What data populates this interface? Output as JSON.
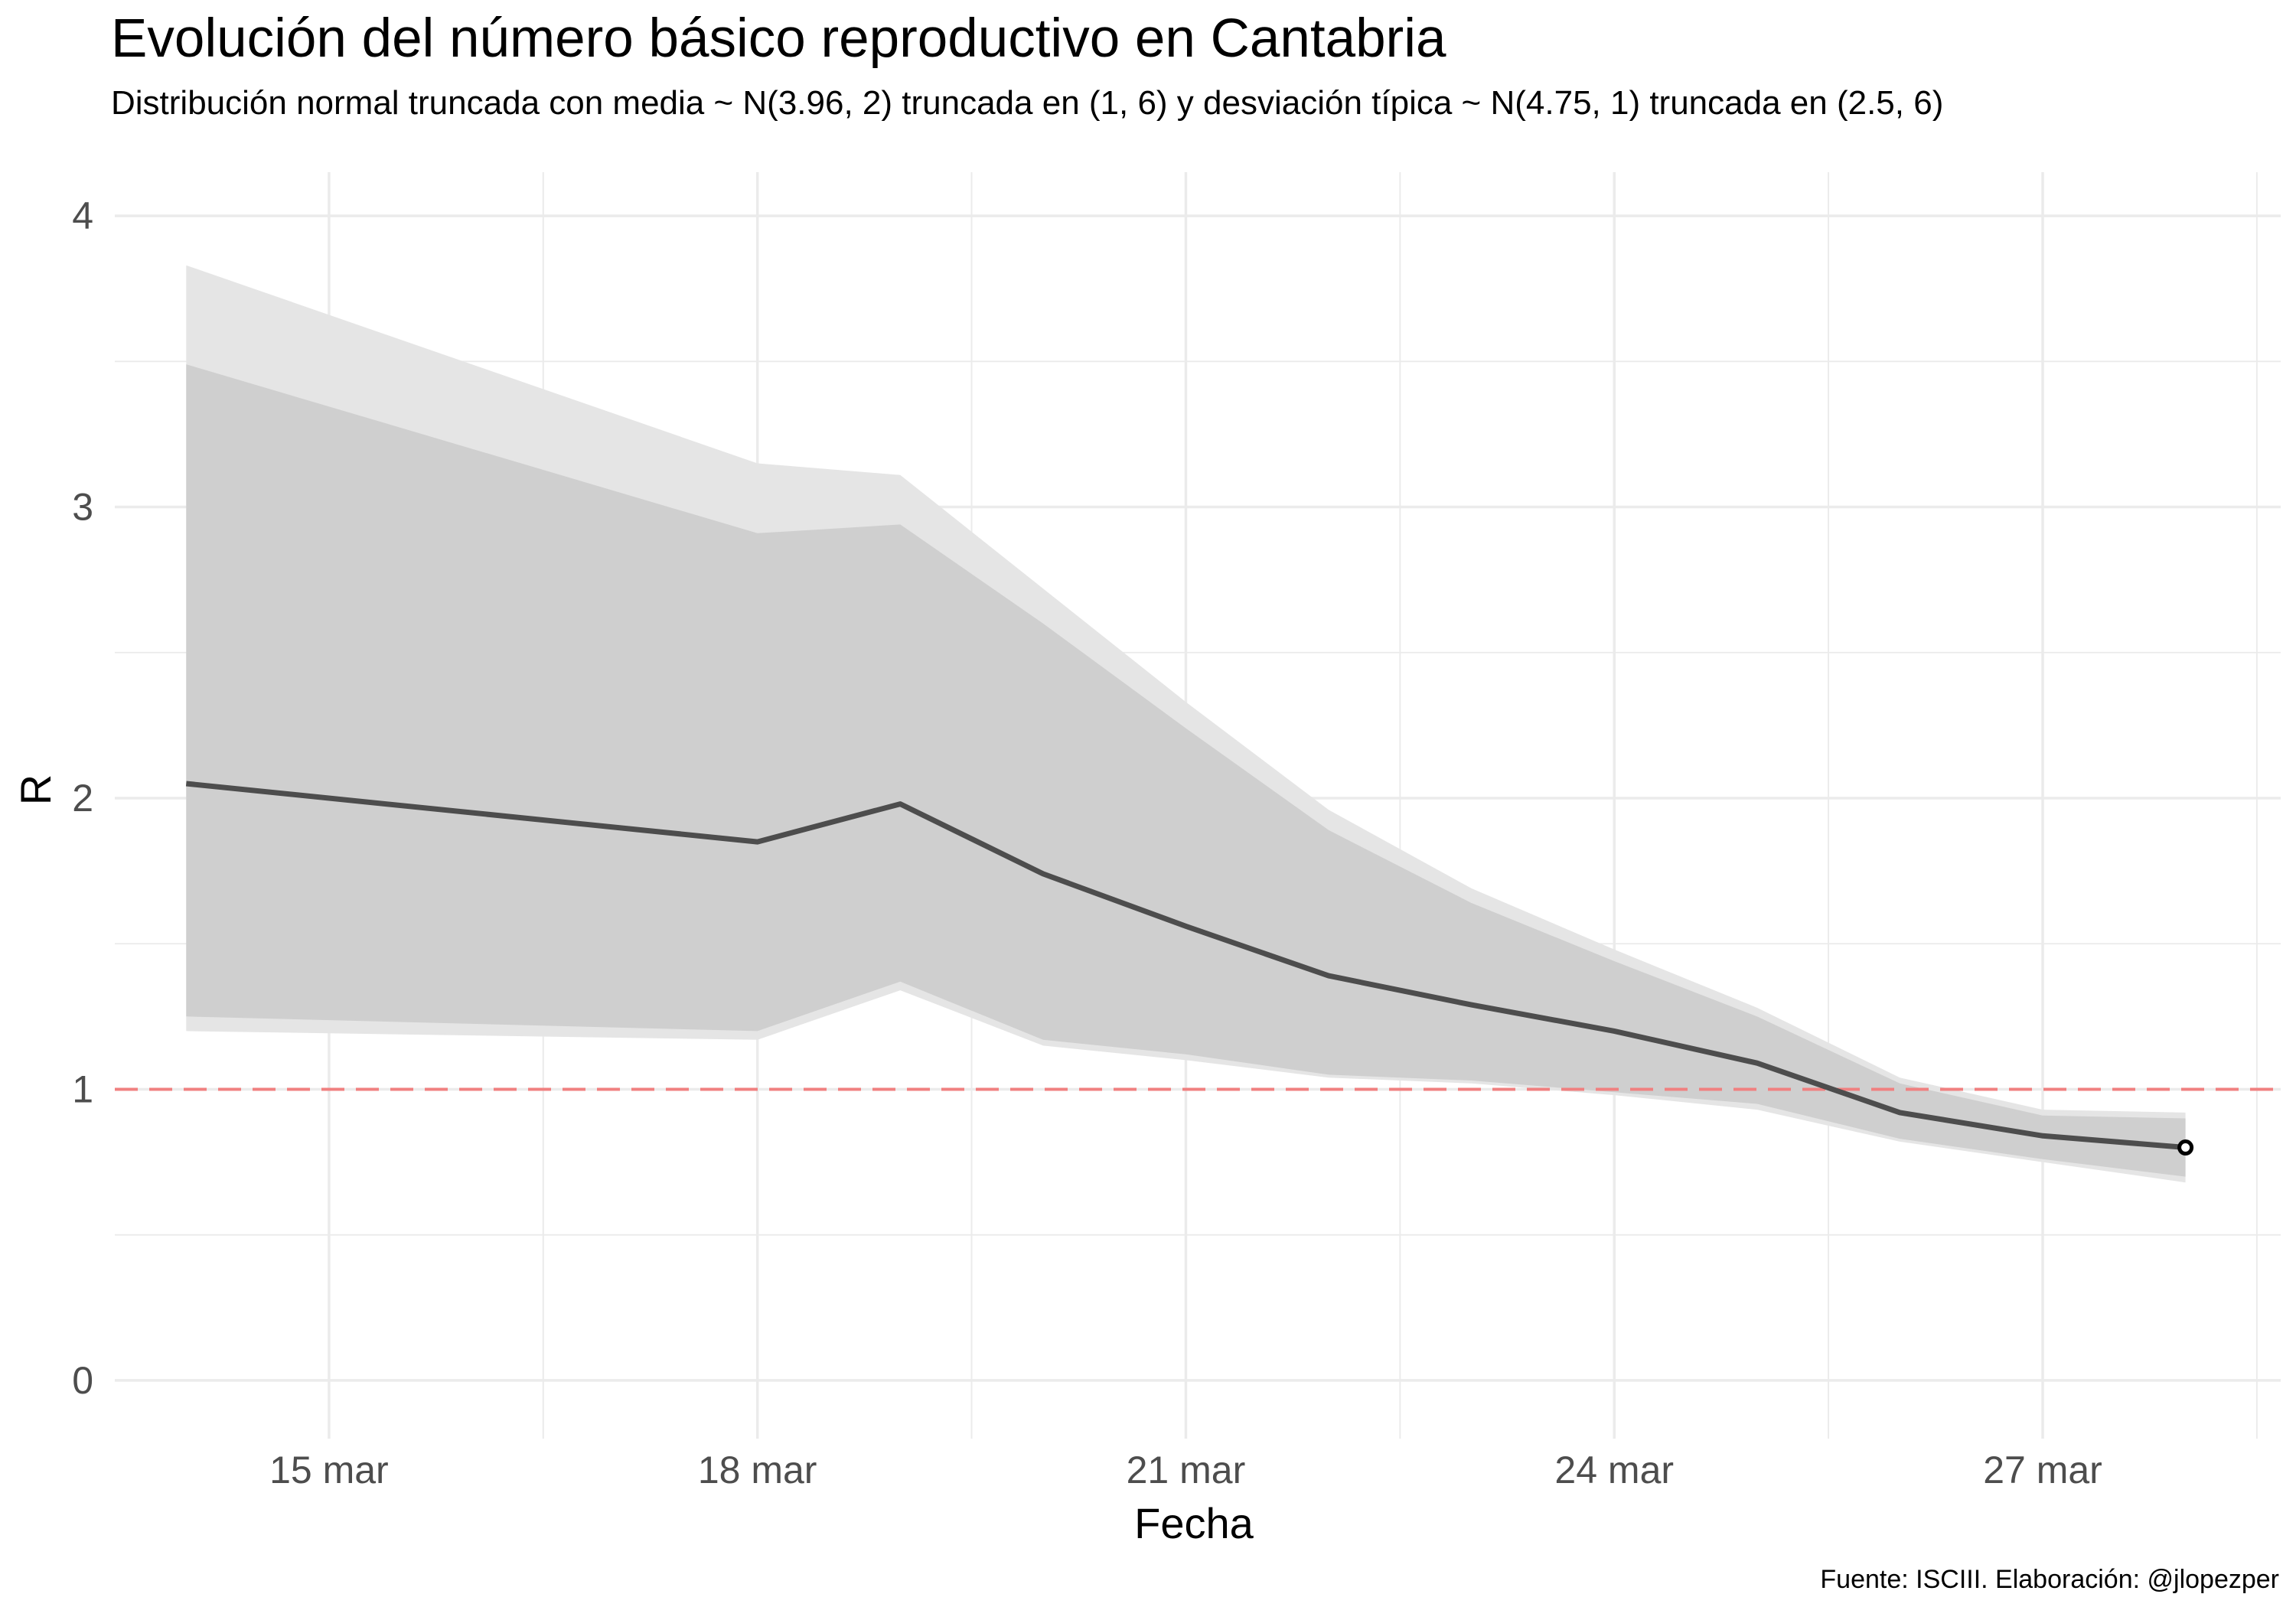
{
  "title": "Evolución del número básico reproductivo en Cantabria",
  "subtitle": "Distribución normal truncada con media ~ N(3.96, 2) truncada en (1, 6) y desviación típica ~ N(4.75, 1) truncada en (2.5, 6)",
  "caption": "Fuente: ISCIII. Elaboración: @jlopezper",
  "colors": {
    "line": "#4d4d4d",
    "outer_band": "#e5e5e5",
    "inner_band": "#cfcfcf",
    "reference": "#f08080",
    "grid": "#ebebeb"
  },
  "chart_data": {
    "type": "line",
    "xlabel": "Fecha",
    "ylabel": "R",
    "grid": true,
    "legend": "none",
    "x_ticks": [
      {
        "date": "2020-03-15",
        "label": "15 mar"
      },
      {
        "date": "2020-03-18",
        "label": "18 mar"
      },
      {
        "date": "2020-03-21",
        "label": "21 mar"
      },
      {
        "date": "2020-03-24",
        "label": "24 mar"
      },
      {
        "date": "2020-03-27",
        "label": "27 mar"
      }
    ],
    "y_ticks": [
      "0",
      "1",
      "2",
      "3",
      "4"
    ],
    "xlim": [
      "2020-03-13 12:00",
      "2020-03-28 16:00"
    ],
    "ylim": [
      -0.2,
      4.15
    ],
    "reference_line": {
      "y": 1,
      "style": "dashed"
    },
    "x": [
      "2020-03-14 00:00",
      "2020-03-18 00:00",
      "2020-03-19 00:00",
      "2020-03-20 00:00",
      "2020-03-21 00:00",
      "2020-03-22 00:00",
      "2020-03-23 00:00",
      "2020-03-24 00:00",
      "2020-03-25 00:00",
      "2020-03-26 00:00",
      "2020-03-27 00:00",
      "2020-03-28 00:00"
    ],
    "series": [
      {
        "values": [
          2.05,
          1.85,
          1.98,
          1.74,
          1.56,
          1.39,
          1.29,
          1.2,
          1.09,
          0.92,
          0.84,
          0.8
        ]
      }
    ],
    "band_outer": {
      "upper": [
        3.83,
        3.15,
        3.11,
        2.72,
        2.33,
        1.96,
        1.69,
        1.48,
        1.28,
        1.04,
        0.93,
        0.92
      ],
      "lower": [
        1.2,
        1.17,
        1.34,
        1.15,
        1.1,
        1.04,
        1.02,
        0.98,
        0.93,
        0.82,
        0.75,
        0.68
      ]
    },
    "band_inner": {
      "upper": [
        3.49,
        2.91,
        2.94,
        2.6,
        2.24,
        1.89,
        1.64,
        1.44,
        1.25,
        1.02,
        0.91,
        0.9
      ],
      "lower": [
        1.25,
        1.2,
        1.37,
        1.17,
        1.12,
        1.05,
        1.03,
        0.99,
        0.95,
        0.83,
        0.76,
        0.7
      ]
    },
    "last_point_marker": true
  }
}
